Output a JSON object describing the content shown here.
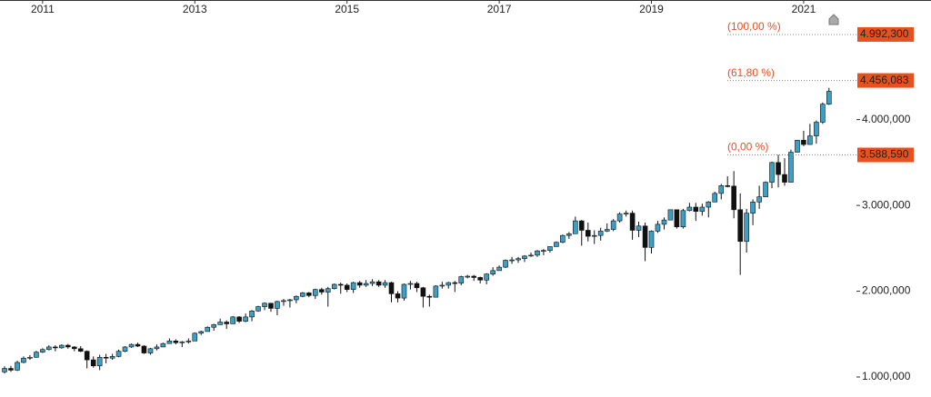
{
  "chart_data": {
    "type": "candlestick",
    "x": [
      2010.5,
      2010.583,
      2010.667,
      2010.75,
      2010.833,
      2010.917,
      2011,
      2011.083,
      2011.167,
      2011.25,
      2011.333,
      2011.417,
      2011.5,
      2011.583,
      2011.667,
      2011.75,
      2011.833,
      2011.917,
      2012,
      2012.083,
      2012.167,
      2012.25,
      2012.333,
      2012.417,
      2012.5,
      2012.583,
      2012.667,
      2012.75,
      2012.833,
      2012.917,
      2013,
      2013.083,
      2013.167,
      2013.25,
      2013.333,
      2013.417,
      2013.5,
      2013.583,
      2013.667,
      2013.75,
      2013.833,
      2013.917,
      2014,
      2014.083,
      2014.167,
      2014.25,
      2014.333,
      2014.417,
      2014.5,
      2014.583,
      2014.667,
      2014.75,
      2014.833,
      2014.917,
      2015,
      2015.083,
      2015.167,
      2015.25,
      2015.333,
      2015.417,
      2015.5,
      2015.583,
      2015.667,
      2015.75,
      2015.833,
      2015.917,
      2016,
      2016.083,
      2016.167,
      2016.25,
      2016.333,
      2016.417,
      2016.5,
      2016.583,
      2016.667,
      2016.75,
      2016.833,
      2016.917,
      2017,
      2017.083,
      2017.167,
      2017.25,
      2017.333,
      2017.417,
      2017.5,
      2017.583,
      2017.667,
      2017.75,
      2017.833,
      2017.917,
      2018,
      2018.083,
      2018.167,
      2018.25,
      2018.333,
      2018.417,
      2018.5,
      2018.583,
      2018.667,
      2018.75,
      2018.833,
      2018.917,
      2019,
      2019.083,
      2019.167,
      2019.25,
      2019.333,
      2019.417,
      2019.5,
      2019.583,
      2019.667,
      2019.75,
      2019.833,
      2019.917,
      2020,
      2020.083,
      2020.167,
      2020.25,
      2020.333,
      2020.417,
      2020.5,
      2020.583,
      2020.667,
      2020.75,
      2020.833,
      2020.917,
      2021,
      2021.083,
      2021.167,
      2021.25,
      2021.333
    ],
    "ohlc": [
      [
        1060,
        1125,
        1040,
        1100
      ],
      [
        1100,
        1130,
        1060,
        1080
      ],
      [
        1080,
        1190,
        1070,
        1170
      ],
      [
        1170,
        1240,
        1160,
        1220
      ],
      [
        1220,
        1255,
        1200,
        1230
      ],
      [
        1230,
        1305,
        1225,
        1290
      ],
      [
        1290,
        1335,
        1280,
        1320
      ],
      [
        1320,
        1370,
        1310,
        1350
      ],
      [
        1350,
        1370,
        1300,
        1340
      ],
      [
        1340,
        1380,
        1330,
        1370
      ],
      [
        1370,
        1385,
        1330,
        1350
      ],
      [
        1350,
        1360,
        1300,
        1330
      ],
      [
        1330,
        1360,
        1290,
        1300
      ],
      [
        1300,
        1310,
        1100,
        1200
      ],
      [
        1200,
        1240,
        1110,
        1130
      ],
      [
        1130,
        1260,
        1080,
        1230
      ],
      [
        1230,
        1270,
        1160,
        1220
      ],
      [
        1220,
        1270,
        1200,
        1240
      ],
      [
        1240,
        1320,
        1230,
        1300
      ],
      [
        1300,
        1360,
        1290,
        1350
      ],
      [
        1350,
        1390,
        1340,
        1380
      ],
      [
        1380,
        1400,
        1350,
        1360
      ],
      [
        1360,
        1370,
        1270,
        1280
      ],
      [
        1280,
        1340,
        1260,
        1330
      ],
      [
        1330,
        1380,
        1310,
        1350
      ],
      [
        1350,
        1400,
        1350,
        1390
      ],
      [
        1390,
        1450,
        1390,
        1420
      ],
      [
        1420,
        1440,
        1380,
        1400
      ],
      [
        1400,
        1420,
        1350,
        1410
      ],
      [
        1410,
        1450,
        1390,
        1420
      ],
      [
        1420,
        1520,
        1420,
        1510
      ],
      [
        1510,
        1540,
        1490,
        1530
      ],
      [
        1530,
        1590,
        1530,
        1580
      ],
      [
        1580,
        1620,
        1540,
        1610
      ],
      [
        1610,
        1680,
        1610,
        1640
      ],
      [
        1640,
        1660,
        1560,
        1620
      ],
      [
        1620,
        1710,
        1620,
        1700
      ],
      [
        1700,
        1710,
        1630,
        1650
      ],
      [
        1650,
        1740,
        1640,
        1700
      ],
      [
        1700,
        1780,
        1650,
        1770
      ],
      [
        1770,
        1830,
        1760,
        1820
      ],
      [
        1820,
        1870,
        1780,
        1860
      ],
      [
        1860,
        1860,
        1760,
        1800
      ],
      [
        1800,
        1890,
        1720,
        1880
      ],
      [
        1880,
        1910,
        1830,
        1890
      ],
      [
        1890,
        1910,
        1810,
        1900
      ],
      [
        1900,
        1950,
        1860,
        1940
      ],
      [
        1940,
        1990,
        1930,
        1980
      ],
      [
        1980,
        1990,
        1930,
        1950
      ],
      [
        1950,
        2030,
        1910,
        2020
      ],
      [
        2020,
        2040,
        1960,
        1990
      ],
      [
        1990,
        2050,
        1820,
        2030
      ],
      [
        2030,
        2090,
        2020,
        2080
      ],
      [
        2080,
        2100,
        1970,
        2070
      ],
      [
        2070,
        2090,
        1990,
        2020
      ],
      [
        2020,
        2110,
        1980,
        2100
      ],
      [
        2100,
        2120,
        2040,
        2070
      ],
      [
        2070,
        2130,
        2050,
        2090
      ],
      [
        2090,
        2140,
        2060,
        2110
      ],
      [
        2110,
        2130,
        2050,
        2070
      ],
      [
        2070,
        2130,
        2040,
        2100
      ],
      [
        2100,
        2110,
        1870,
        1970
      ],
      [
        1970,
        2000,
        1870,
        1920
      ],
      [
        1920,
        2090,
        1890,
        2080
      ],
      [
        2080,
        2120,
        2020,
        2090
      ],
      [
        2090,
        2110,
        1990,
        2040
      ],
      [
        2040,
        2050,
        1810,
        1940
      ],
      [
        1940,
        1960,
        1820,
        1930
      ],
      [
        1930,
        2070,
        1930,
        2060
      ],
      [
        2060,
        2110,
        2030,
        2070
      ],
      [
        2070,
        2110,
        2030,
        2100
      ],
      [
        2100,
        2120,
        1990,
        2095
      ],
      [
        2095,
        2180,
        2070,
        2170
      ],
      [
        2170,
        2190,
        2150,
        2175
      ],
      [
        2175,
        2190,
        2120,
        2160
      ],
      [
        2160,
        2170,
        2090,
        2130
      ],
      [
        2130,
        2210,
        2080,
        2200
      ],
      [
        2200,
        2280,
        2180,
        2240
      ],
      [
        2240,
        2300,
        2240,
        2280
      ],
      [
        2280,
        2370,
        2270,
        2360
      ],
      [
        2360,
        2400,
        2320,
        2365
      ],
      [
        2365,
        2400,
        2330,
        2380
      ],
      [
        2380,
        2420,
        2340,
        2410
      ],
      [
        2410,
        2450,
        2400,
        2420
      ],
      [
        2420,
        2480,
        2400,
        2470
      ],
      [
        2470,
        2490,
        2420,
        2475
      ],
      [
        2475,
        2520,
        2450,
        2520
      ],
      [
        2520,
        2580,
        2520,
        2570
      ],
      [
        2570,
        2660,
        2560,
        2650
      ],
      [
        2650,
        2690,
        2610,
        2670
      ],
      [
        2670,
        2870,
        2680,
        2820
      ],
      [
        2820,
        2830,
        2530,
        2710
      ],
      [
        2710,
        2800,
        2580,
        2640
      ],
      [
        2640,
        2710,
        2550,
        2650
      ],
      [
        2650,
        2740,
        2590,
        2700
      ],
      [
        2700,
        2790,
        2690,
        2720
      ],
      [
        2720,
        2840,
        2700,
        2820
      ],
      [
        2820,
        2920,
        2800,
        2900
      ],
      [
        2900,
        2940,
        2870,
        2910
      ],
      [
        2910,
        2940,
        2600,
        2710
      ],
      [
        2710,
        2810,
        2630,
        2760
      ],
      [
        2760,
        2800,
        2350,
        2510
      ],
      [
        2510,
        2710,
        2440,
        2700
      ],
      [
        2700,
        2820,
        2680,
        2780
      ],
      [
        2780,
        2860,
        2720,
        2830
      ],
      [
        2830,
        2950,
        2840,
        2950
      ],
      [
        2950,
        2950,
        2730,
        2750
      ],
      [
        2750,
        2960,
        2730,
        2940
      ],
      [
        2940,
        3030,
        2930,
        2980
      ],
      [
        2980,
        3030,
        2820,
        2930
      ],
      [
        2930,
        3020,
        2880,
        2980
      ],
      [
        2980,
        3050,
        2860,
        3040
      ],
      [
        3040,
        3160,
        3040,
        3140
      ],
      [
        3140,
        3250,
        3070,
        3230
      ],
      [
        3230,
        3340,
        3210,
        3225
      ],
      [
        3225,
        3400,
        2850,
        2950
      ],
      [
        2950,
        3140,
        2190,
        2580
      ],
      [
        2580,
        2960,
        2450,
        2910
      ],
      [
        2910,
        3070,
        2770,
        3040
      ],
      [
        3040,
        3230,
        2960,
        3100
      ],
      [
        3100,
        3280,
        3100,
        3270
      ],
      [
        3270,
        3510,
        3200,
        3500
      ],
      [
        3500,
        3590,
        3210,
        3360
      ],
      [
        3360,
        3550,
        3230,
        3270
      ],
      [
        3270,
        3650,
        3280,
        3620
      ],
      [
        3620,
        3760,
        3620,
        3760
      ],
      [
        3760,
        3870,
        3690,
        3710
      ],
      [
        3710,
        3950,
        3720,
        3810
      ],
      [
        3810,
        3990,
        3720,
        3970
      ],
      [
        3970,
        4200,
        3950,
        4180
      ],
      [
        4180,
        4370,
        4170,
        4330
      ]
    ],
    "up_color": "#3b9fc6",
    "down_color": "#111111",
    "xlim": [
      2010.44,
      2021.67
    ],
    "xticks": [
      2011,
      2013,
      2015,
      2017,
      2019,
      2021
    ],
    "ylim": [
      767,
      5394
    ],
    "yticks": [
      {
        "value": 1000,
        "label": "1.000,000"
      },
      {
        "value": 2000,
        "label": "2.000,000"
      },
      {
        "value": 3000,
        "label": "3.000,000"
      },
      {
        "value": 4000,
        "label": "4.000,000"
      }
    ],
    "levels": [
      {
        "label": "(100,00 %)",
        "value": 4992.3,
        "value_label": "4.992,300"
      },
      {
        "label": "(61,80 %)",
        "value": 4456.083,
        "value_label": "4.456,083"
      },
      {
        "label": "(0,00 %)",
        "value": 3588.59,
        "value_label": "3.588,590"
      }
    ],
    "level_color": "#e8501e"
  }
}
